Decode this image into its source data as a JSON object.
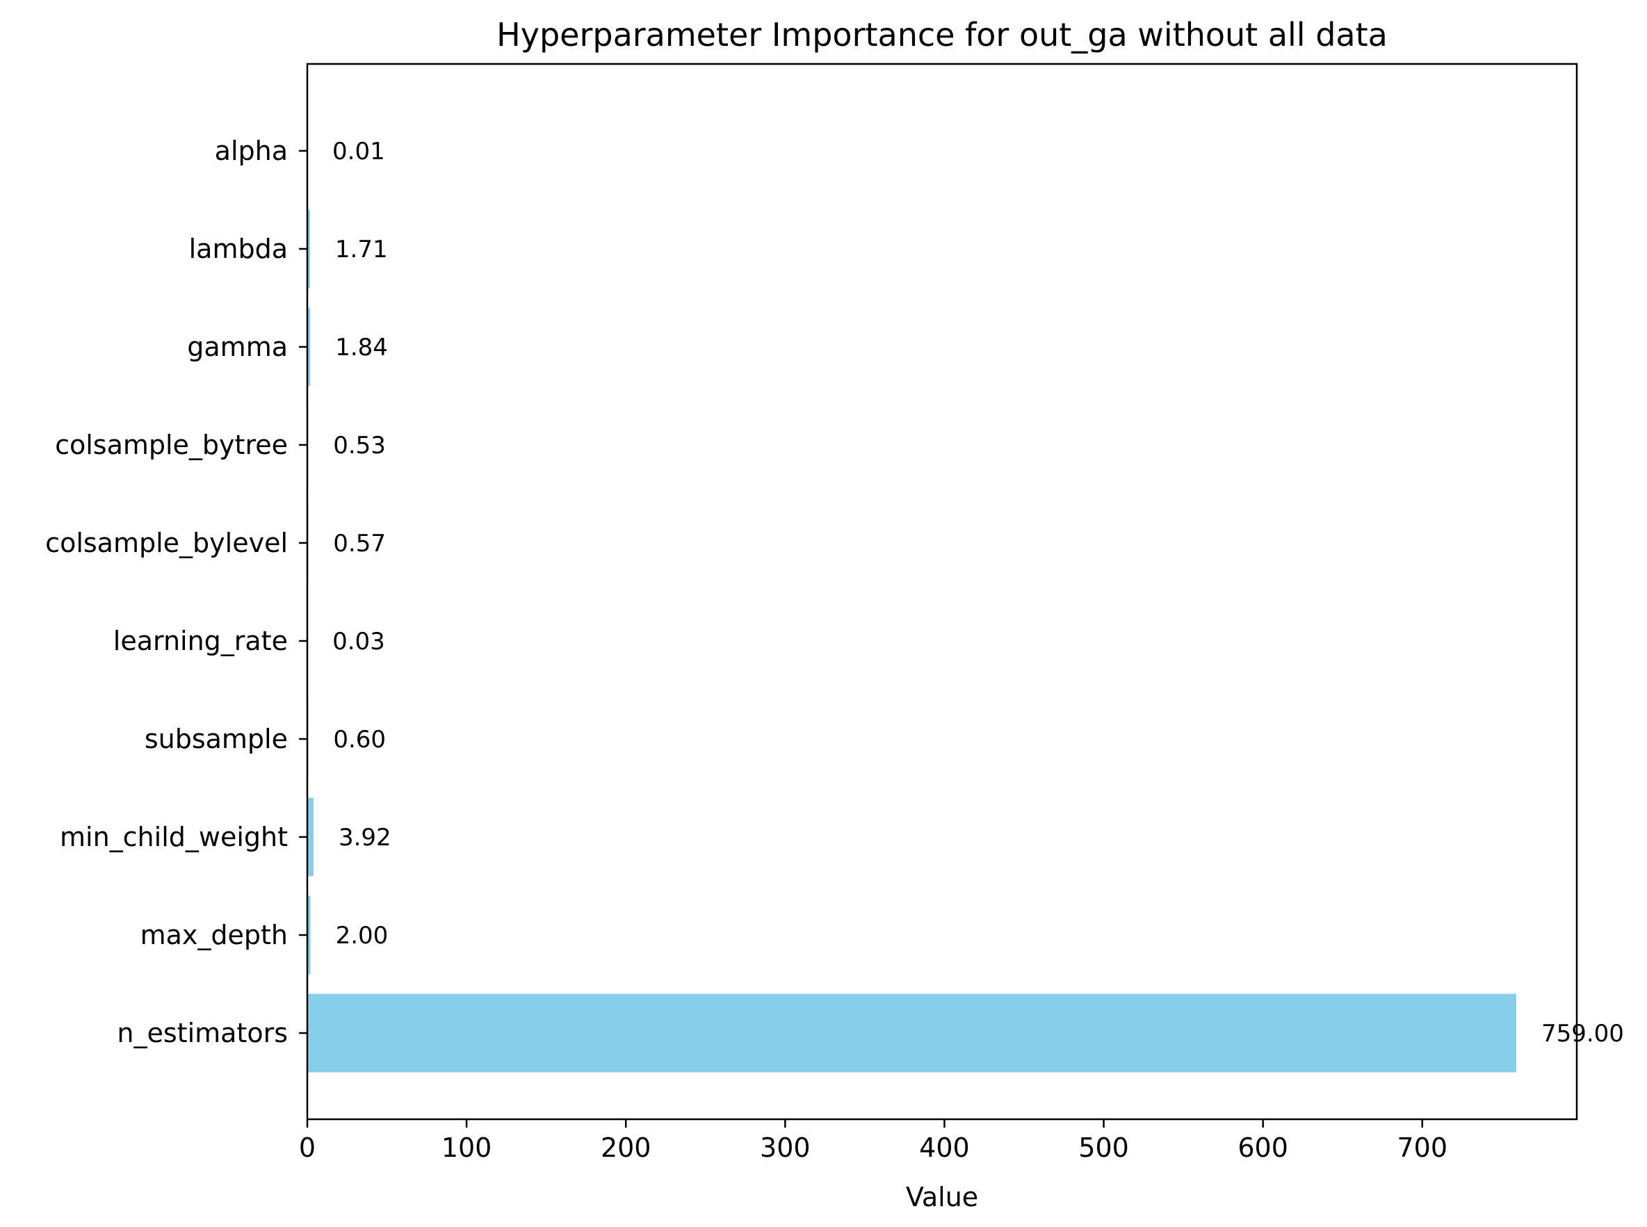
{
  "chart_data": {
    "type": "bar",
    "orientation": "horizontal",
    "title": "Hyperparameter Importance for out_ga without all data",
    "xlabel": "Value",
    "ylabel": "",
    "categories": [
      "n_estimators",
      "max_depth",
      "min_child_weight",
      "subsample",
      "learning_rate",
      "colsample_bylevel",
      "colsample_bytree",
      "gamma",
      "lambda",
      "alpha"
    ],
    "values": [
      759.0,
      2.0,
      3.92,
      0.6,
      0.03,
      0.57,
      0.53,
      1.84,
      1.71,
      0.01
    ],
    "value_labels": [
      "759.00",
      "2.00",
      "3.92",
      "0.60",
      "0.03",
      "0.57",
      "0.53",
      "1.84",
      "1.71",
      "0.01"
    ],
    "xlim": [
      0,
      797
    ],
    "xticks": [
      0,
      100,
      200,
      300,
      400,
      500,
      600,
      700
    ],
    "grid": false,
    "bar_color": "#87CEEB",
    "axis_color": "#000000"
  }
}
